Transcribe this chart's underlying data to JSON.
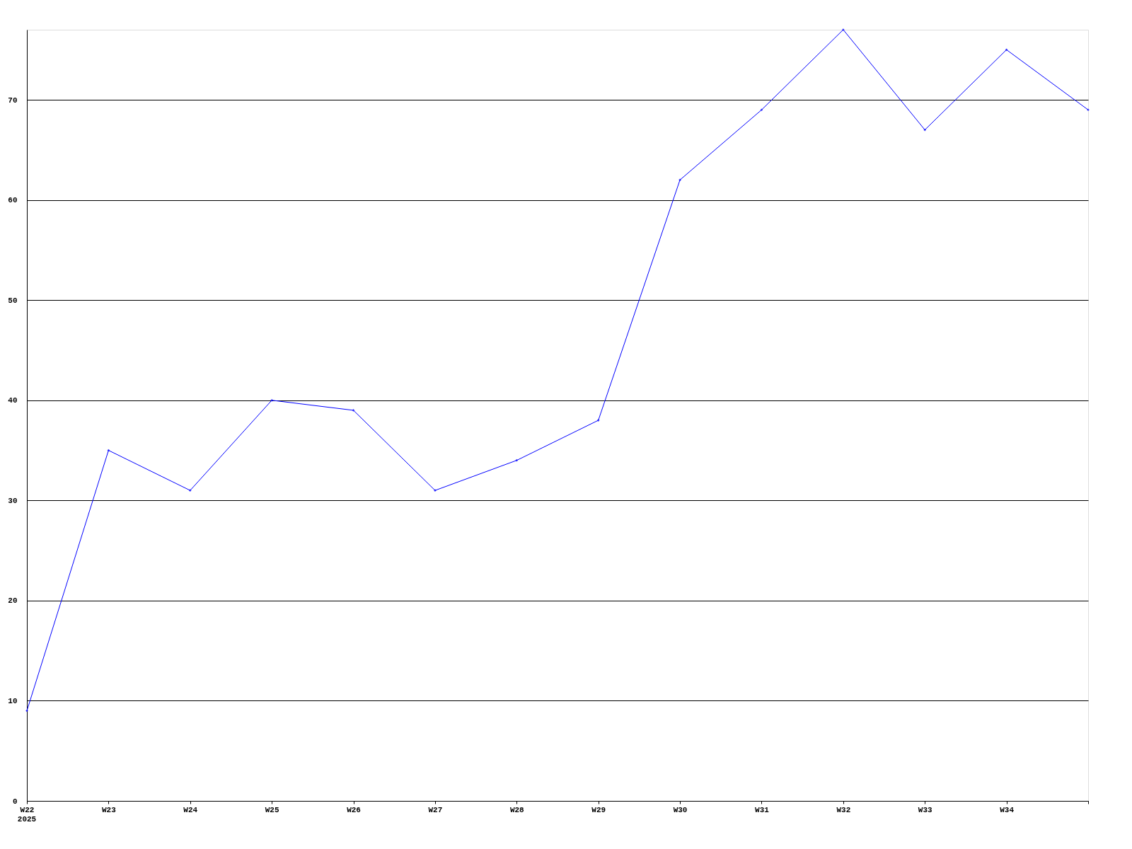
{
  "chart_data": {
    "type": "line",
    "categories": [
      "W22",
      "W23",
      "W24",
      "W25",
      "W26",
      "W27",
      "W28",
      "W29",
      "W30",
      "W31",
      "W32",
      "W33",
      "W34",
      null
    ],
    "series": [
      {
        "color": "#0000ff",
        "values": [
          9,
          35,
          31,
          40,
          39,
          31,
          34,
          38,
          62,
          69,
          77,
          67,
          75,
          69
        ]
      }
    ],
    "ylim": [
      0,
      77
    ],
    "yticks": [
      0,
      10,
      20,
      30,
      40,
      50,
      60,
      70
    ],
    "annotations": [
      "2025"
    ],
    "grid": "y",
    "marker": "diamond",
    "line_style": "solid"
  }
}
